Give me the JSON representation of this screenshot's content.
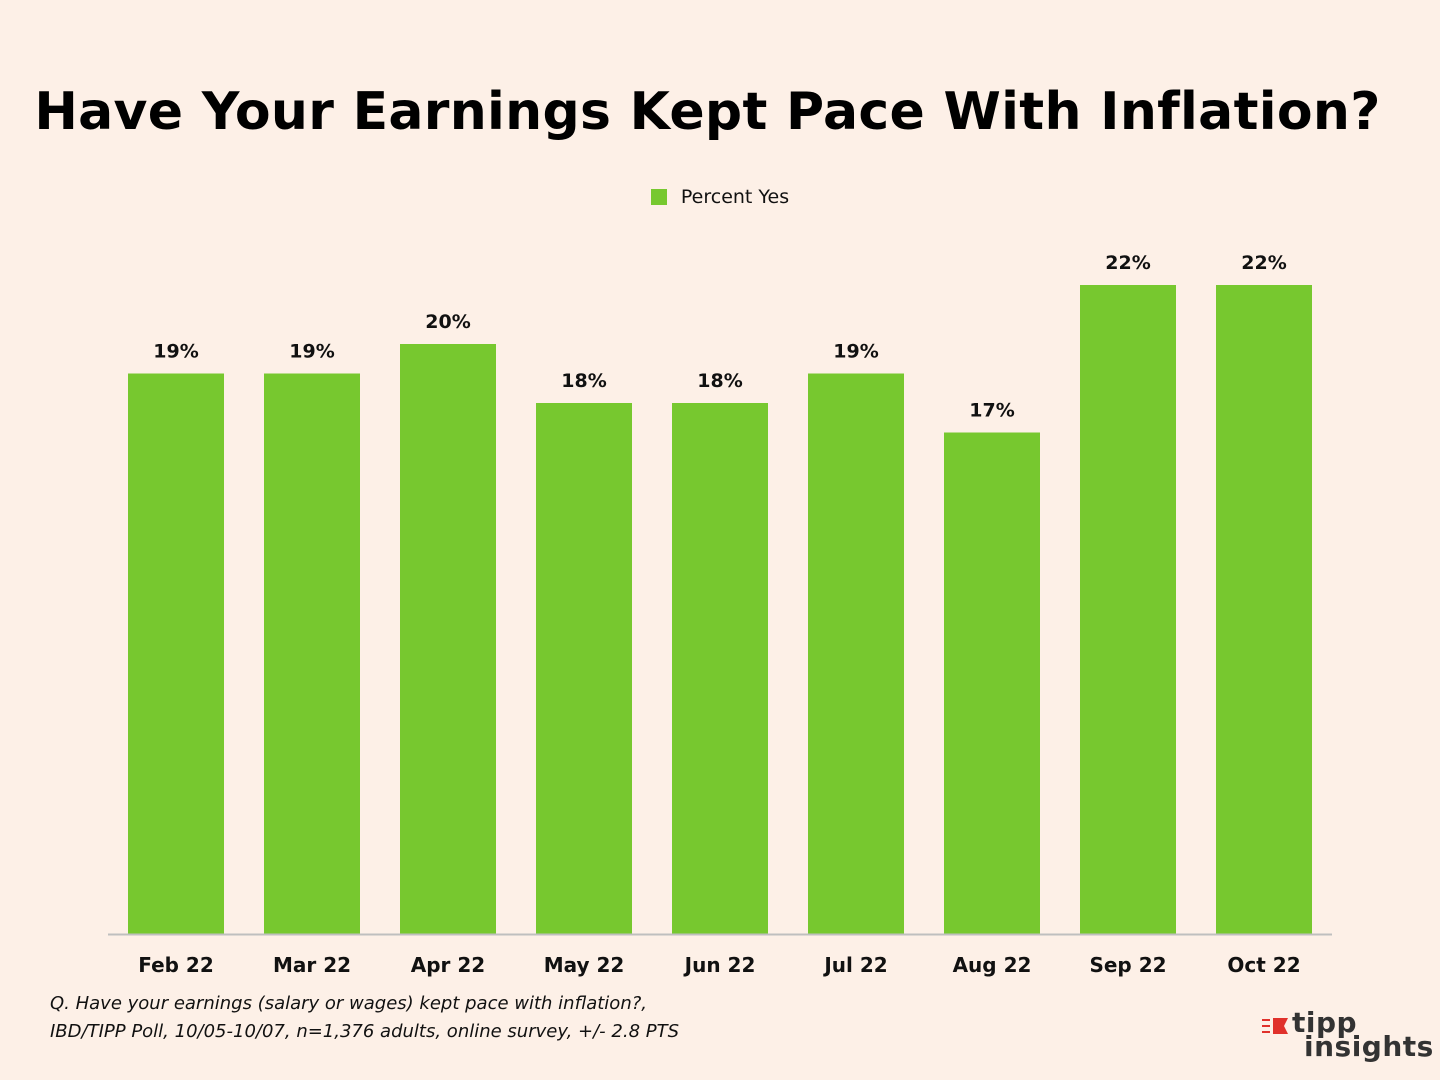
{
  "chart_data": {
    "type": "bar",
    "title": "Have Your Earnings Kept Pace With Inflation?",
    "categories": [
      "Feb 22",
      "Mar 22",
      "Apr 22",
      "May 22",
      "Jun 22",
      "Jul 22",
      "Aug 22",
      "Sep 22",
      "Oct 22"
    ],
    "series": [
      {
        "name": "Percent Yes",
        "values": [
          19,
          19,
          20,
          18,
          18,
          19,
          17,
          22,
          22
        ],
        "color": "#77c82f"
      }
    ],
    "data_labels": [
      "19%",
      "19%",
      "20%",
      "18%",
      "18%",
      "19%",
      "17%",
      "22%",
      "22%"
    ],
    "legend_position": "top-center",
    "ylim": [
      0,
      22
    ],
    "xlabel": "",
    "ylabel": ""
  },
  "legend": {
    "label": "Percent Yes",
    "color": "#77c82f"
  },
  "footnote": {
    "line1": "Q. Have your earnings (salary or wages) kept pace with inflation?,",
    "line2": "IBD/TIPP Poll, 10/05-10/07, n=1,376 adults, online survey, +/- 2.8 PTS"
  },
  "logo": {
    "line1": "tipp",
    "line2": "insights",
    "accent_color": "#e0312b"
  },
  "colors": {
    "background": "#fdf0e7",
    "axis": "#bfbfbf"
  }
}
